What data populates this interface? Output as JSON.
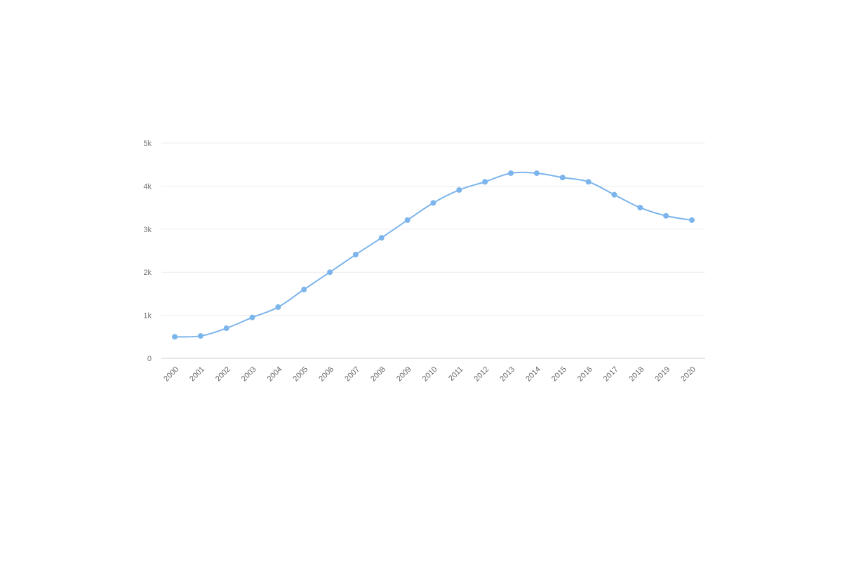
{
  "chart_data": {
    "type": "line",
    "title": "",
    "xlabel": "",
    "ylabel": "",
    "x": [
      "2000",
      "2001",
      "2002",
      "2003",
      "2004",
      "2005",
      "2006",
      "2007",
      "2008",
      "2009",
      "2010",
      "2011",
      "2012",
      "2013",
      "2014",
      "2015",
      "2016",
      "2017",
      "2018",
      "2019",
      "2020"
    ],
    "y_ticks": [
      {
        "value": 0,
        "label": "0"
      },
      {
        "value": 1000,
        "label": "1k"
      },
      {
        "value": 2000,
        "label": "2k"
      },
      {
        "value": 3000,
        "label": "3k"
      },
      {
        "value": 4000,
        "label": "4k"
      },
      {
        "value": 5000,
        "label": "5k"
      }
    ],
    "ylim": [
      0,
      5000
    ],
    "grid": true,
    "legend": "none",
    "series": [
      {
        "color": "#7cb5ec",
        "values": [
          500,
          520,
          700,
          950,
          1190,
          1600,
          2000,
          2410,
          2800,
          3210,
          3610,
          3910,
          4100,
          4300,
          4300,
          4200,
          4100,
          3800,
          3500,
          3310,
          3210
        ]
      }
    ]
  }
}
